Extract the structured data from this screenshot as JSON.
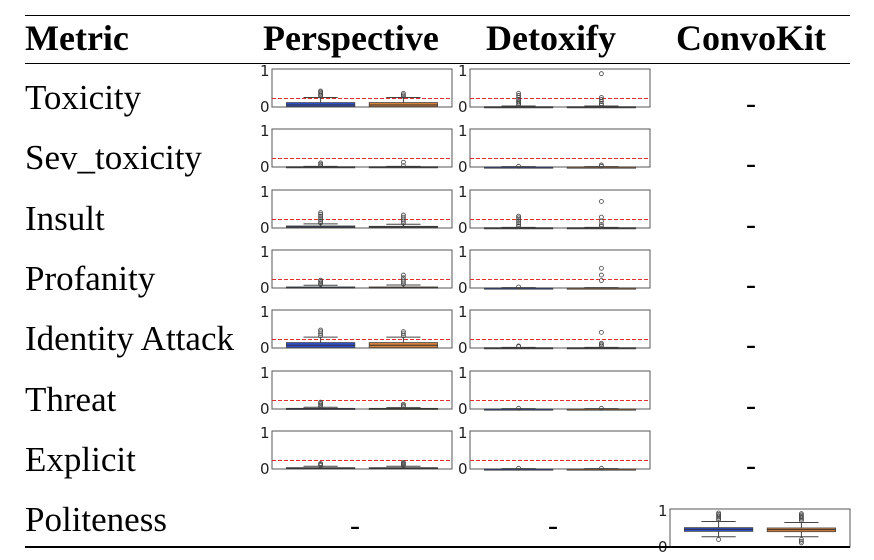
{
  "table": {
    "headers": [
      "Metric",
      "Perspective",
      "Detoxify",
      "ConvoKit"
    ],
    "dash": "-",
    "y_tick_top": "1",
    "y_tick_bottom": "0",
    "colors": {
      "series_a": "#2f4fd1",
      "series_b": "#d9823b",
      "threshold": "#e0302a"
    },
    "rows": [
      {
        "metric": "Toxicity",
        "perspective": {
          "a": {
            "q1": 0.01,
            "med": 0.06,
            "q3": 0.13,
            "whisk": 0.28,
            "outliers": [
              0.32,
              0.36,
              0.4,
              0.44,
              0.47
            ]
          },
          "b": {
            "q1": 0.01,
            "med": 0.06,
            "q3": 0.13,
            "whisk": 0.28,
            "outliers": [
              0.32,
              0.36,
              0.4
            ]
          }
        },
        "detoxify": {
          "a": {
            "q1": 0,
            "med": 0,
            "q3": 0.01,
            "whisk": 0.03,
            "outliers": [
              0.06,
              0.1,
              0.14,
              0.18,
              0.22,
              0.28,
              0.34,
              0.4
            ]
          },
          "b": {
            "q1": 0,
            "med": 0,
            "q3": 0.01,
            "whisk": 0.03,
            "outliers": [
              0.06,
              0.1,
              0.16,
              0.22,
              0.28,
              0.98
            ]
          }
        },
        "convokit": null
      },
      {
        "metric": "Sev_toxicity",
        "perspective": {
          "a": {
            "q1": 0,
            "med": 0,
            "q3": 0.01,
            "whisk": 0.02,
            "outliers": [
              0.04,
              0.08,
              0.12
            ]
          },
          "b": {
            "q1": 0,
            "med": 0,
            "q3": 0.01,
            "whisk": 0.02,
            "outliers": [
              0.04,
              0.14
            ]
          }
        },
        "detoxify": {
          "a": {
            "q1": 0,
            "med": 0,
            "q3": 0,
            "whisk": 0.01,
            "outliers": [
              0.02
            ]
          },
          "b": {
            "q1": 0,
            "med": 0,
            "q3": 0,
            "whisk": 0.01,
            "outliers": [
              0.02,
              0.06
            ]
          }
        },
        "convokit": null
      },
      {
        "metric": "Insult",
        "perspective": {
          "a": {
            "q1": 0.01,
            "med": 0.03,
            "q3": 0.06,
            "whisk": 0.12,
            "outliers": [
              0.15,
              0.2,
              0.25,
              0.3,
              0.35,
              0.4,
              0.45
            ]
          },
          "b": {
            "q1": 0.01,
            "med": 0.03,
            "q3": 0.05,
            "whisk": 0.11,
            "outliers": [
              0.14,
              0.2,
              0.26,
              0.32,
              0.38
            ]
          }
        },
        "detoxify": {
          "a": {
            "q1": 0,
            "med": 0,
            "q3": 0.01,
            "whisk": 0.02,
            "outliers": [
              0.05,
              0.1,
              0.15,
              0.2,
              0.25,
              0.3,
              0.35
            ]
          },
          "b": {
            "q1": 0,
            "med": 0,
            "q3": 0.01,
            "whisk": 0.02,
            "outliers": [
              0.05,
              0.1,
              0.2,
              0.32,
              0.78
            ]
          }
        },
        "convokit": null
      },
      {
        "metric": "Profanity",
        "perspective": {
          "a": {
            "q1": 0.01,
            "med": 0.02,
            "q3": 0.03,
            "whisk": 0.08,
            "outliers": [
              0.11,
              0.15,
              0.19,
              0.23
            ]
          },
          "b": {
            "q1": 0.01,
            "med": 0.02,
            "q3": 0.03,
            "whisk": 0.09,
            "outliers": [
              0.12,
              0.18,
              0.24,
              0.3,
              0.38
            ]
          }
        },
        "detoxify": {
          "a": {
            "q1": 0,
            "med": 0,
            "q3": 0,
            "whisk": 0.01,
            "outliers": [
              0.03
            ]
          },
          "b": {
            "q1": 0,
            "med": 0,
            "q3": 0,
            "whisk": 0.01,
            "outliers": [
              0.22,
              0.38,
              0.58
            ]
          }
        },
        "convokit": null
      },
      {
        "metric": "Identity Attack",
        "perspective": {
          "a": {
            "q1": 0.01,
            "med": 0.08,
            "q3": 0.16,
            "whisk": 0.32,
            "outliers": [
              0.36,
              0.42,
              0.48,
              0.53
            ]
          },
          "b": {
            "q1": 0.01,
            "med": 0.08,
            "q3": 0.16,
            "whisk": 0.32,
            "outliers": [
              0.36,
              0.42,
              0.48
            ]
          }
        },
        "detoxify": {
          "a": {
            "q1": 0,
            "med": 0,
            "q3": 0.01,
            "whisk": 0.02,
            "outliers": [
              0.04,
              0.06
            ]
          },
          "b": {
            "q1": 0,
            "med": 0,
            "q3": 0.01,
            "whisk": 0.02,
            "outliers": [
              0.06,
              0.1,
              0.14,
              0.46
            ]
          }
        },
        "convokit": null
      },
      {
        "metric": "Threat",
        "perspective": {
          "a": {
            "q1": 0,
            "med": 0.01,
            "q3": 0.02,
            "whisk": 0.05,
            "outliers": [
              0.08,
              0.12,
              0.16,
              0.2
            ]
          },
          "b": {
            "q1": 0,
            "med": 0.01,
            "q3": 0.02,
            "whisk": 0.04,
            "outliers": [
              0.07,
              0.1,
              0.14
            ]
          }
        },
        "detoxify": {
          "a": {
            "q1": 0,
            "med": 0,
            "q3": 0,
            "whisk": 0.01,
            "outliers": [
              0.02
            ]
          },
          "b": {
            "q1": 0,
            "med": 0,
            "q3": 0,
            "whisk": 0.01,
            "outliers": [
              0.02
            ]
          }
        },
        "convokit": null
      },
      {
        "metric": "Explicit",
        "perspective": {
          "a": {
            "q1": 0.01,
            "med": 0.02,
            "q3": 0.04,
            "whisk": 0.08,
            "outliers": [
              0.1,
              0.13,
              0.16
            ]
          },
          "b": {
            "q1": 0.01,
            "med": 0.02,
            "q3": 0.04,
            "whisk": 0.08,
            "outliers": [
              0.1,
              0.13,
              0.16,
              0.19
            ]
          }
        },
        "detoxify": {
          "a": {
            "q1": 0,
            "med": 0,
            "q3": 0,
            "whisk": 0.01,
            "outliers": [
              0.02
            ]
          },
          "b": {
            "q1": 0,
            "med": 0,
            "q3": 0,
            "whisk": 0.01,
            "outliers": [
              0.02
            ]
          }
        },
        "convokit": null
      },
      {
        "metric": "Politeness",
        "perspective": null,
        "detoxify": null,
        "convokit": {
          "a": {
            "q1": 0.46,
            "med": 0.52,
            "q3": 0.57,
            "whisk_low": 0.3,
            "whisk": 0.75,
            "outliers": [
              0.8,
              0.84,
              0.88,
              0.92,
              0.96,
              1.0,
              0.22
            ]
          },
          "b": {
            "q1": 0.45,
            "med": 0.51,
            "q3": 0.56,
            "whisk_low": 0.3,
            "whisk": 0.72,
            "outliers": [
              0.78,
              0.82,
              0.86,
              0.9,
              0.94,
              0.98,
              0.22,
              0.17,
              0.12
            ]
          }
        }
      }
    ]
  }
}
